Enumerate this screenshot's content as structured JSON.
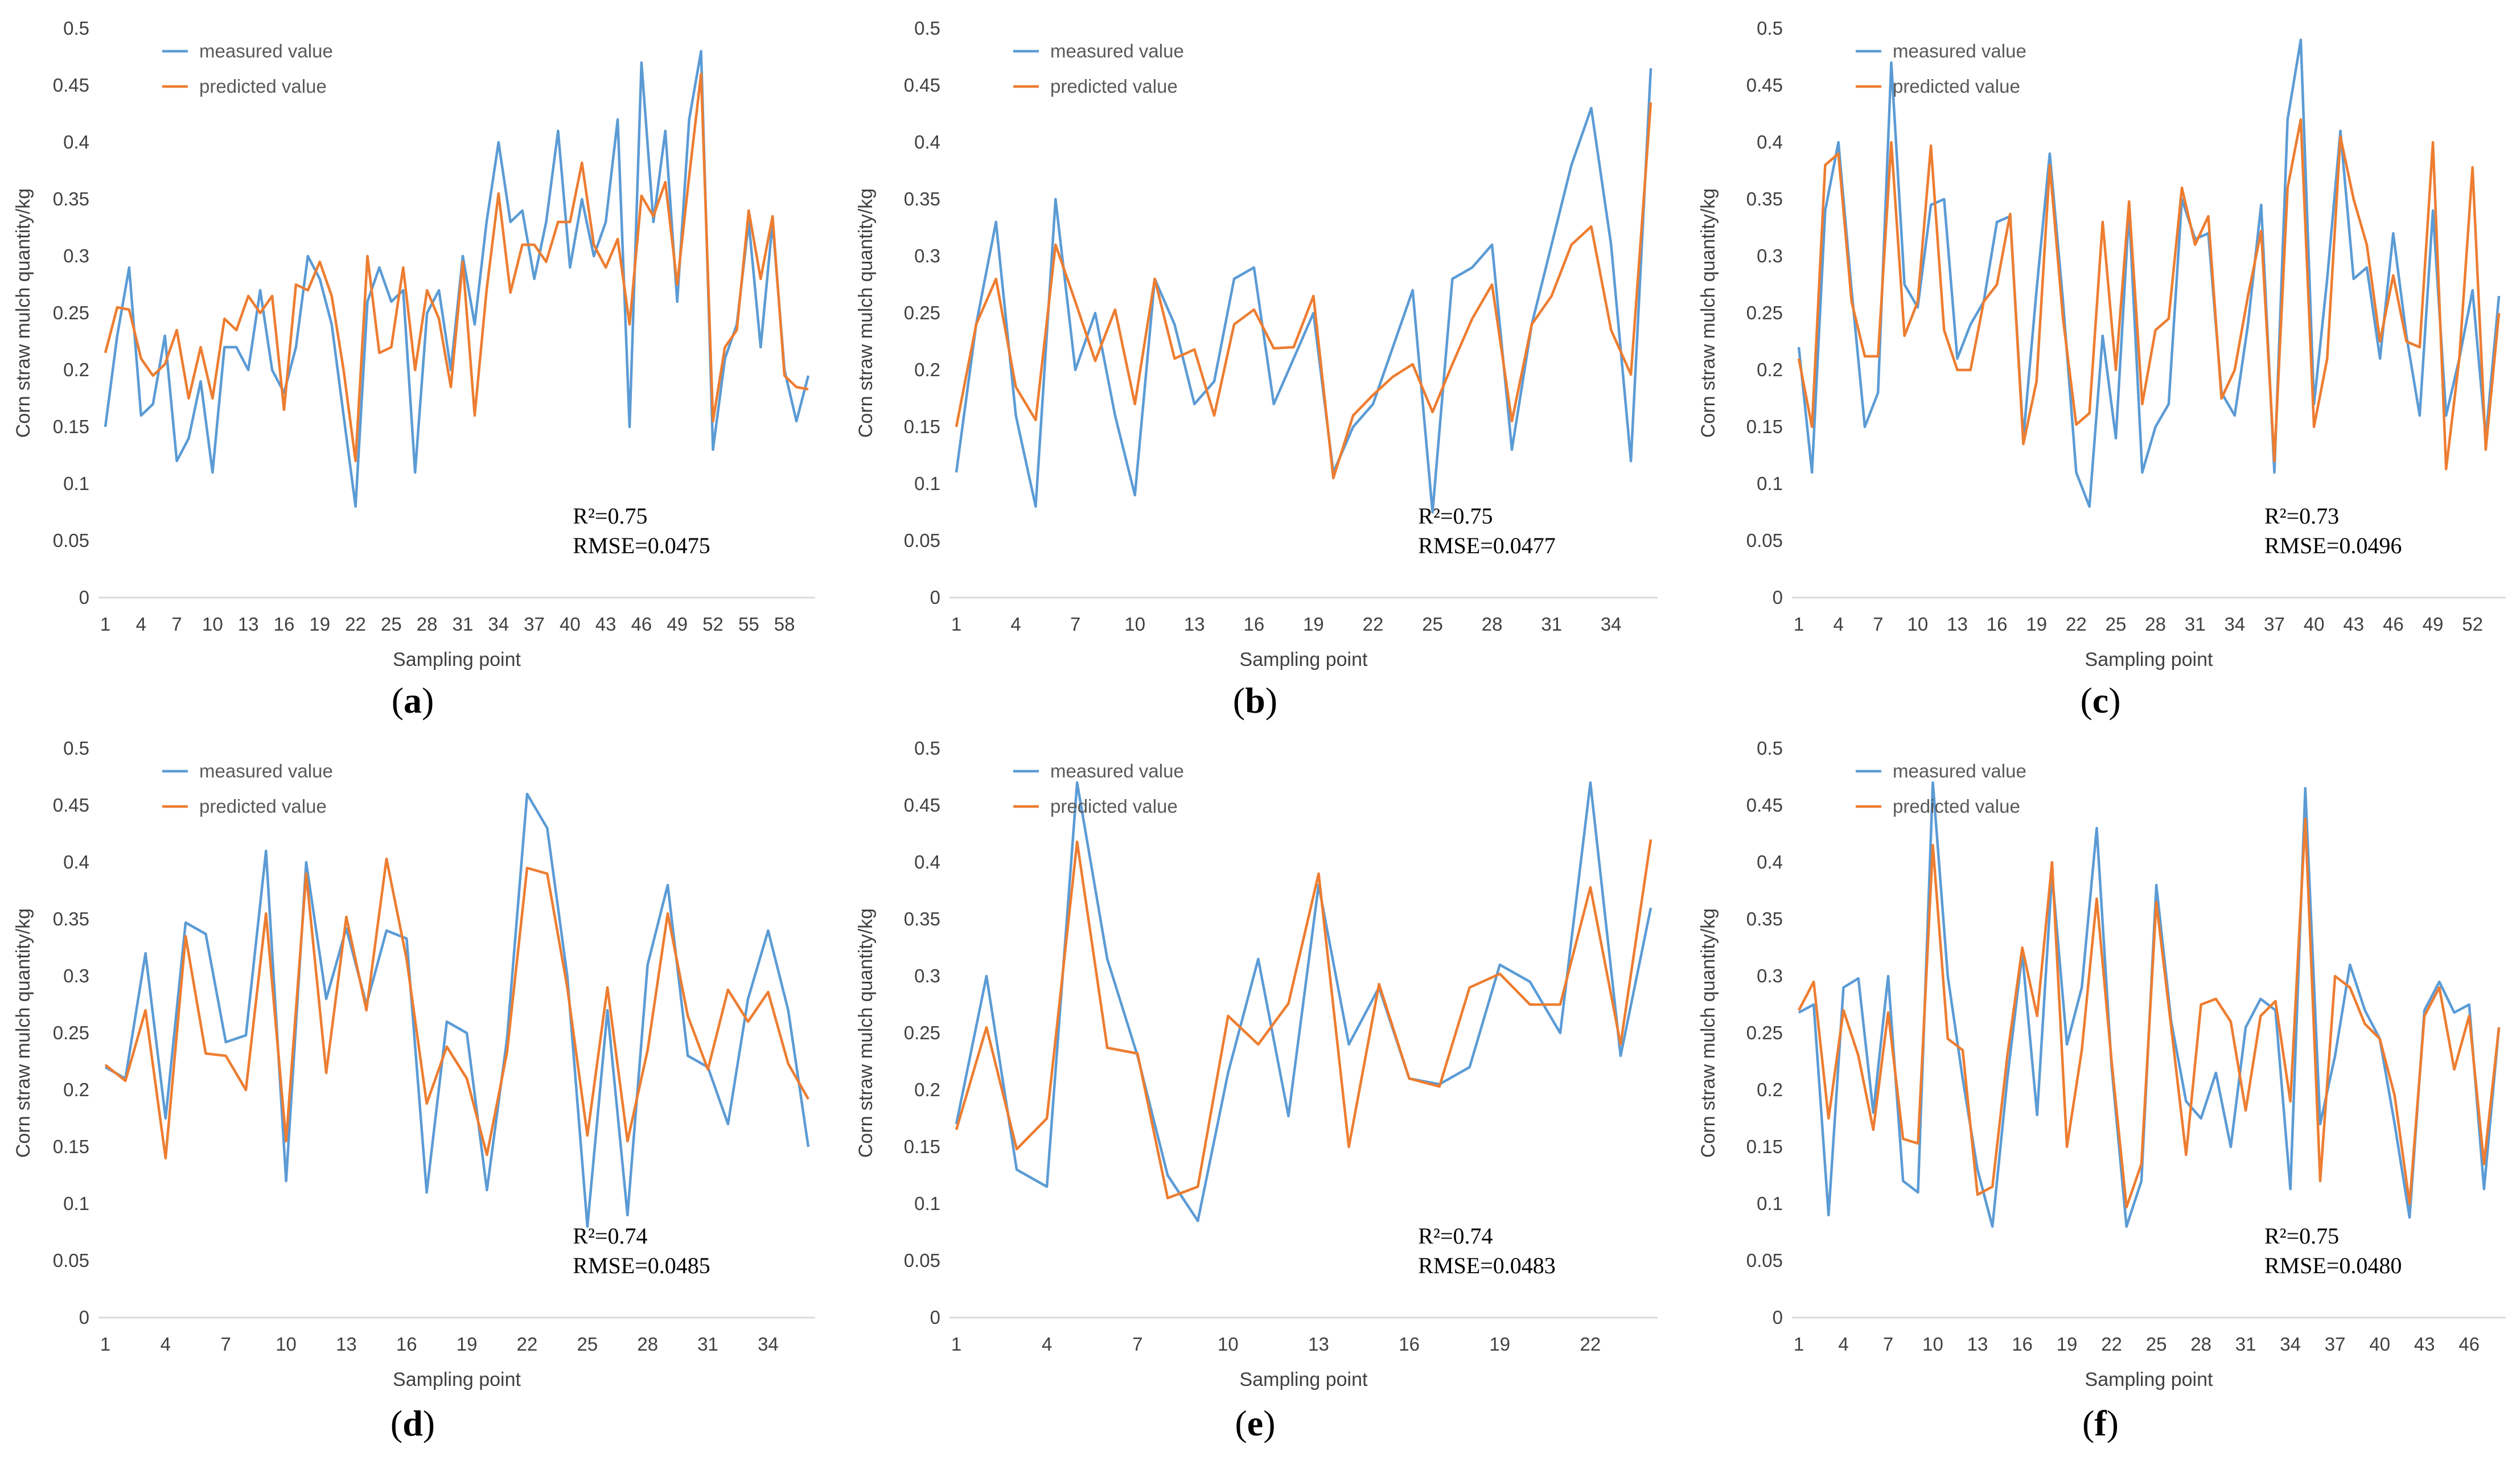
{
  "figure": {
    "series_colors": {
      "measured": "#5b9bd5",
      "predicted": "#ed7d31"
    },
    "axis_color": "#d9d9d9",
    "text_color": "#404040"
  },
  "chart_data": [
    {
      "type": "line",
      "panel_label": "a",
      "xlabel": "Sampling point",
      "ylabel": "Corn straw mulch quantity/kg",
      "ylim": [
        0,
        0.5
      ],
      "yticks": [
        "0",
        "0.05",
        "0.1",
        "0.15",
        "0.2",
        "0.25",
        "0.3",
        "0.35",
        "0.4",
        "0.45",
        "0.5"
      ],
      "xtick_labels": [
        "1",
        "4",
        "7",
        "10",
        "13",
        "16",
        "19",
        "22",
        "25",
        "28",
        "31",
        "34",
        "37",
        "40",
        "43",
        "46",
        "49",
        "52",
        "55",
        "58"
      ],
      "legend": [
        "measured value",
        "predicted value"
      ],
      "r2_label": "R²=0.75",
      "rmse_label": "RMSE=0.0475",
      "series": [
        {
          "name": "measured value",
          "values": [
            0.15,
            0.23,
            0.29,
            0.16,
            0.17,
            0.23,
            0.12,
            0.14,
            0.19,
            0.11,
            0.22,
            0.22,
            0.2,
            0.27,
            0.2,
            0.18,
            0.22,
            0.3,
            0.28,
            0.24,
            0.16,
            0.08,
            0.26,
            0.29,
            0.26,
            0.27,
            0.11,
            0.25,
            0.27,
            0.2,
            0.3,
            0.24,
            0.33,
            0.4,
            0.33,
            0.34,
            0.28,
            0.33,
            0.41,
            0.29,
            0.35,
            0.3,
            0.33,
            0.42,
            0.15,
            0.47,
            0.33,
            0.41,
            0.26,
            0.42,
            0.48,
            0.13,
            0.21,
            0.24,
            0.33,
            0.22,
            0.33,
            0.2,
            0.155,
            0.195
          ]
        },
        {
          "name": "predicted value",
          "values": [
            0.215,
            0.255,
            0.253,
            0.21,
            0.195,
            0.205,
            0.235,
            0.175,
            0.22,
            0.175,
            0.245,
            0.235,
            0.265,
            0.25,
            0.265,
            0.165,
            0.275,
            0.27,
            0.295,
            0.265,
            0.2,
            0.12,
            0.3,
            0.215,
            0.22,
            0.29,
            0.2,
            0.27,
            0.245,
            0.185,
            0.295,
            0.16,
            0.27,
            0.355,
            0.268,
            0.31,
            0.31,
            0.295,
            0.33,
            0.33,
            0.382,
            0.31,
            0.29,
            0.315,
            0.24,
            0.353,
            0.335,
            0.365,
            0.275,
            0.37,
            0.46,
            0.155,
            0.22,
            0.235,
            0.34,
            0.28,
            0.335,
            0.195,
            0.185,
            0.183
          ]
        }
      ]
    },
    {
      "type": "line",
      "panel_label": "b",
      "xlabel": "Sampling point",
      "ylabel": "Corn straw mulch quantity/kg",
      "ylim": [
        0,
        0.5
      ],
      "yticks": [
        "0",
        "0.05",
        "0.1",
        "0.15",
        "0.2",
        "0.25",
        "0.3",
        "0.35",
        "0.4",
        "0.45",
        "0.5"
      ],
      "xtick_labels": [
        "1",
        "4",
        "7",
        "10",
        "13",
        "16",
        "19",
        "22",
        "25",
        "28",
        "31",
        "34"
      ],
      "legend": [
        "measured value",
        "predicted value"
      ],
      "r2_label": "R²=0.75",
      "rmse_label": "RMSE=0.0477",
      "series": [
        {
          "name": "measured value",
          "values": [
            0.11,
            0.24,
            0.33,
            0.16,
            0.08,
            0.35,
            0.2,
            0.25,
            0.16,
            0.09,
            0.28,
            0.24,
            0.17,
            0.19,
            0.28,
            0.29,
            0.17,
            0.21,
            0.25,
            0.11,
            0.15,
            0.17,
            0.22,
            0.27,
            0.075,
            0.28,
            0.29,
            0.31,
            0.13,
            0.24,
            0.31,
            0.38,
            0.43,
            0.31,
            0.12,
            0.465
          ]
        },
        {
          "name": "predicted value",
          "values": [
            0.15,
            0.24,
            0.28,
            0.185,
            0.156,
            0.31,
            0.26,
            0.208,
            0.253,
            0.17,
            0.28,
            0.21,
            0.218,
            0.16,
            0.24,
            0.253,
            0.219,
            0.22,
            0.265,
            0.105,
            0.16,
            0.178,
            0.194,
            0.205,
            0.163,
            0.205,
            0.245,
            0.275,
            0.155,
            0.24,
            0.265,
            0.31,
            0.326,
            0.235,
            0.196,
            0.435
          ]
        }
      ]
    },
    {
      "type": "line",
      "panel_label": "c",
      "xlabel": "Sampling point",
      "ylabel": "Corn straw mulch quantity/kg",
      "ylim": [
        0,
        0.5
      ],
      "yticks": [
        "0",
        "0.05",
        "0.1",
        "0.15",
        "0.2",
        "0.25",
        "0.3",
        "0.35",
        "0.4",
        "0.45",
        "0.5"
      ],
      "xtick_labels": [
        "1",
        "4",
        "7",
        "10",
        "13",
        "16",
        "19",
        "22",
        "25",
        "28",
        "31",
        "34",
        "37",
        "40",
        "43",
        "46",
        "49",
        "52"
      ],
      "legend": [
        "measured value",
        "predicted value"
      ],
      "r2_label": "R²=0.73",
      "rmse_label": "RMSE=0.0496",
      "series": [
        {
          "name": "measured value",
          "values": [
            0.22,
            0.11,
            0.34,
            0.4,
            0.27,
            0.15,
            0.18,
            0.47,
            0.275,
            0.255,
            0.345,
            0.35,
            0.21,
            0.24,
            0.26,
            0.33,
            0.335,
            0.14,
            0.27,
            0.39,
            0.26,
            0.11,
            0.08,
            0.23,
            0.14,
            0.34,
            0.11,
            0.15,
            0.17,
            0.35,
            0.315,
            0.32,
            0.18,
            0.16,
            0.24,
            0.345,
            0.11,
            0.42,
            0.49,
            0.17,
            0.28,
            0.41,
            0.28,
            0.29,
            0.21,
            0.32,
            0.23,
            0.16,
            0.34,
            0.16,
            0.21,
            0.27,
            0.14,
            0.265
          ]
        },
        {
          "name": "predicted value",
          "values": [
            0.21,
            0.15,
            0.38,
            0.39,
            0.26,
            0.212,
            0.212,
            0.4,
            0.23,
            0.26,
            0.397,
            0.235,
            0.2,
            0.2,
            0.26,
            0.275,
            0.337,
            0.135,
            0.19,
            0.38,
            0.245,
            0.152,
            0.162,
            0.33,
            0.2,
            0.348,
            0.17,
            0.235,
            0.245,
            0.36,
            0.31,
            0.335,
            0.175,
            0.2,
            0.265,
            0.322,
            0.12,
            0.36,
            0.42,
            0.15,
            0.21,
            0.405,
            0.35,
            0.31,
            0.225,
            0.283,
            0.225,
            0.22,
            0.4,
            0.113,
            0.21,
            0.378,
            0.13,
            0.25
          ]
        }
      ]
    },
    {
      "type": "line",
      "panel_label": "d",
      "xlabel": "Sampling point",
      "ylabel": "Corn straw mulch quantity/kg",
      "ylim": [
        0,
        0.5
      ],
      "yticks": [
        "0",
        "0.05",
        "0.1",
        "0.15",
        "0.2",
        "0.25",
        "0.3",
        "0.35",
        "0.4",
        "0.45",
        "0.5"
      ],
      "xtick_labels": [
        "1",
        "4",
        "7",
        "10",
        "13",
        "16",
        "19",
        "22",
        "25",
        "28",
        "31",
        "34"
      ],
      "legend": [
        "measured value",
        "predicted value"
      ],
      "r2_label": "R²=0.74",
      "rmse_label": "RMSE=0.0485",
      "series": [
        {
          "name": "measured value",
          "values": [
            0.22,
            0.21,
            0.32,
            0.175,
            0.347,
            0.337,
            0.242,
            0.248,
            0.41,
            0.12,
            0.4,
            0.28,
            0.342,
            0.275,
            0.34,
            0.333,
            0.11,
            0.26,
            0.25,
            0.112,
            0.245,
            0.46,
            0.43,
            0.3,
            0.08,
            0.27,
            0.09,
            0.31,
            0.38,
            0.23,
            0.22,
            0.17,
            0.28,
            0.34,
            0.27,
            0.15
          ]
        },
        {
          "name": "predicted value",
          "values": [
            0.222,
            0.208,
            0.27,
            0.14,
            0.335,
            0.232,
            0.23,
            0.2,
            0.355,
            0.155,
            0.39,
            0.215,
            0.352,
            0.27,
            0.403,
            0.315,
            0.188,
            0.238,
            0.21,
            0.143,
            0.233,
            0.395,
            0.39,
            0.29,
            0.16,
            0.29,
            0.155,
            0.235,
            0.355,
            0.265,
            0.218,
            0.288,
            0.26,
            0.286,
            0.223,
            0.192
          ]
        }
      ]
    },
    {
      "type": "line",
      "panel_label": "e",
      "xlabel": "Sampling point",
      "ylabel": "Corn straw mulch quantity/kg",
      "ylim": [
        0,
        0.5
      ],
      "yticks": [
        "0",
        "0.05",
        "0.1",
        "0.15",
        "0.2",
        "0.25",
        "0.3",
        "0.35",
        "0.4",
        "0.45",
        "0.5"
      ],
      "xtick_labels": [
        "1",
        "4",
        "7",
        "10",
        "13",
        "16",
        "19",
        "22"
      ],
      "legend": [
        "measured value",
        "predicted value"
      ],
      "r2_label": "R²=0.74",
      "rmse_label": "RMSE=0.0483",
      "series": [
        {
          "name": "measured value",
          "values": [
            0.17,
            0.3,
            0.13,
            0.115,
            0.47,
            0.315,
            0.23,
            0.125,
            0.085,
            0.215,
            0.315,
            0.177,
            0.38,
            0.24,
            0.29,
            0.21,
            0.205,
            0.22,
            0.31,
            0.295,
            0.25,
            0.47,
            0.23,
            0.36
          ]
        },
        {
          "name": "predicted value",
          "values": [
            0.165,
            0.255,
            0.148,
            0.175,
            0.418,
            0.237,
            0.232,
            0.105,
            0.115,
            0.265,
            0.24,
            0.276,
            0.39,
            0.15,
            0.293,
            0.21,
            0.203,
            0.29,
            0.302,
            0.275,
            0.275,
            0.378,
            0.24,
            0.42
          ]
        }
      ]
    },
    {
      "type": "line",
      "panel_label": "f",
      "xlabel": "Sampling point",
      "ylabel": "Corn straw mulch quantity/kg",
      "ylim": [
        0,
        0.5
      ],
      "yticks": [
        "0",
        "0.05",
        "0.1",
        "0.15",
        "0.2",
        "0.25",
        "0.3",
        "0.35",
        "0.4",
        "0.45",
        "0.5"
      ],
      "xtick_labels": [
        "1",
        "4",
        "7",
        "10",
        "13",
        "16",
        "19",
        "22",
        "25",
        "28",
        "31",
        "34",
        "37",
        "40",
        "43",
        "46"
      ],
      "legend": [
        "measured value",
        "predicted value"
      ],
      "r2_label": "R²=0.75",
      "rmse_label": "RMSE=0.0480",
      "series": [
        {
          "name": "measured value",
          "values": [
            0.268,
            0.275,
            0.09,
            0.29,
            0.298,
            0.18,
            0.3,
            0.12,
            0.11,
            0.47,
            0.3,
            0.21,
            0.13,
            0.08,
            0.21,
            0.32,
            0.178,
            0.39,
            0.24,
            0.29,
            0.43,
            0.22,
            0.08,
            0.12,
            0.38,
            0.26,
            0.19,
            0.175,
            0.215,
            0.15,
            0.255,
            0.28,
            0.27,
            0.113,
            0.465,
            0.17,
            0.23,
            0.31,
            0.27,
            0.245,
            0.17,
            0.088,
            0.27,
            0.295,
            0.268,
            0.275,
            0.113,
            0.255
          ]
        },
        {
          "name": "predicted value",
          "values": [
            0.27,
            0.295,
            0.175,
            0.27,
            0.23,
            0.165,
            0.268,
            0.157,
            0.153,
            0.415,
            0.245,
            0.235,
            0.108,
            0.115,
            0.23,
            0.325,
            0.265,
            0.4,
            0.15,
            0.235,
            0.368,
            0.225,
            0.097,
            0.135,
            0.365,
            0.255,
            0.143,
            0.275,
            0.28,
            0.26,
            0.182,
            0.265,
            0.278,
            0.19,
            0.438,
            0.12,
            0.3,
            0.29,
            0.258,
            0.245,
            0.195,
            0.1,
            0.265,
            0.29,
            0.218,
            0.265,
            0.135,
            0.255
          ]
        }
      ]
    }
  ]
}
